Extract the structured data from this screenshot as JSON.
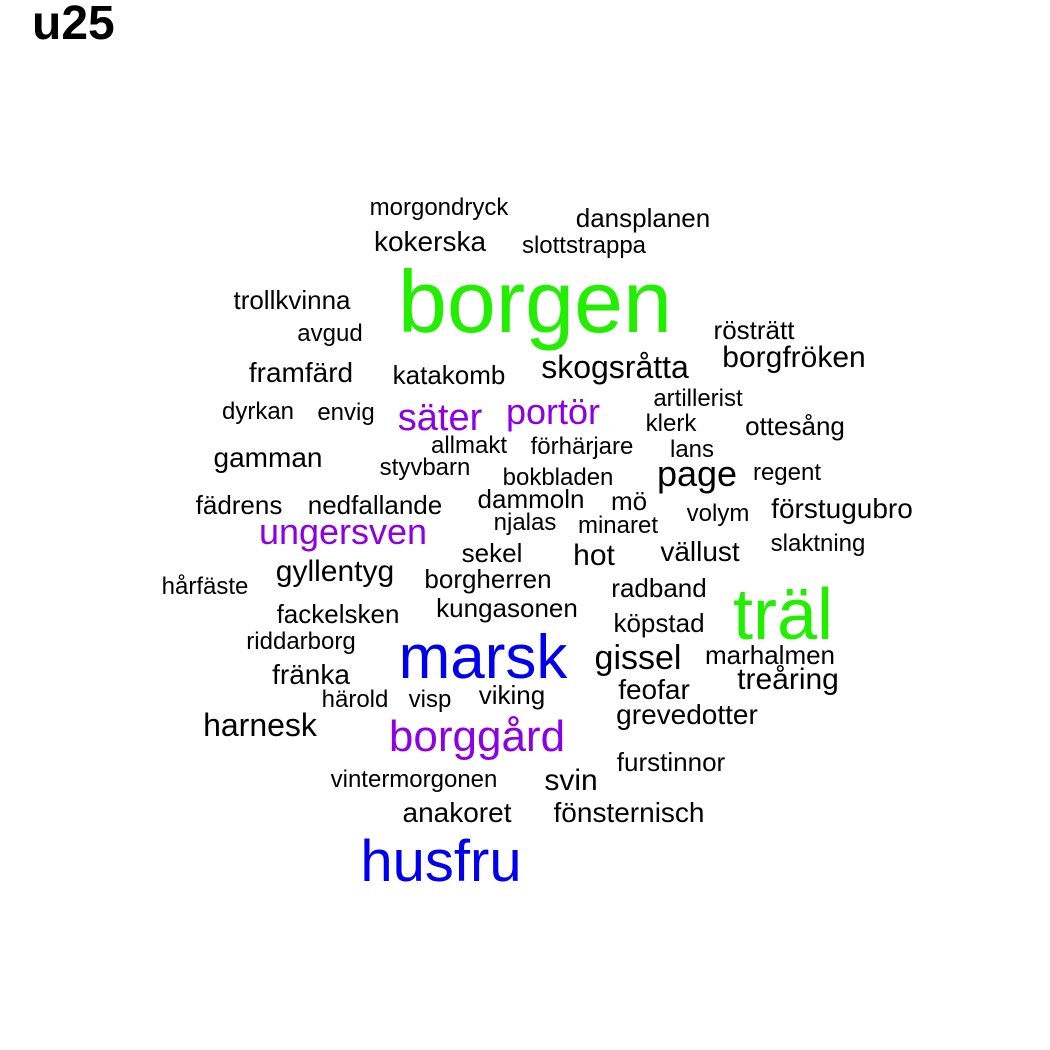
{
  "title": "u25",
  "colors": {
    "green": "#22ee00",
    "blue": "#0000ee",
    "purple": "#8b00e6",
    "black": "#000000"
  },
  "words": [
    {
      "text": "borgen",
      "color": "green"
    },
    {
      "text": "träl",
      "color": "green"
    },
    {
      "text": "marsk",
      "color": "blue"
    },
    {
      "text": "husfru",
      "color": "blue"
    },
    {
      "text": "borggård",
      "color": "purple"
    },
    {
      "text": "säter",
      "color": "purple"
    },
    {
      "text": "portör",
      "color": "purple"
    },
    {
      "text": "ungersven",
      "color": "purple"
    },
    {
      "text": "morgondryck",
      "color": "black"
    },
    {
      "text": "dansplanen",
      "color": "black"
    },
    {
      "text": "kokerska",
      "color": "black"
    },
    {
      "text": "slottstrappa",
      "color": "black"
    },
    {
      "text": "trollkvinna",
      "color": "black"
    },
    {
      "text": "avgud",
      "color": "black"
    },
    {
      "text": "rösträtt",
      "color": "black"
    },
    {
      "text": "borgfröken",
      "color": "black"
    },
    {
      "text": "framfärd",
      "color": "black"
    },
    {
      "text": "katakomb",
      "color": "black"
    },
    {
      "text": "skogsråtta",
      "color": "black"
    },
    {
      "text": "artillerist",
      "color": "black"
    },
    {
      "text": "dyrkan",
      "color": "black"
    },
    {
      "text": "envig",
      "color": "black"
    },
    {
      "text": "klerk",
      "color": "black"
    },
    {
      "text": "ottesång",
      "color": "black"
    },
    {
      "text": "allmakt",
      "color": "black"
    },
    {
      "text": "förhärjare",
      "color": "black"
    },
    {
      "text": "lans",
      "color": "black"
    },
    {
      "text": "gamman",
      "color": "black"
    },
    {
      "text": "styvbarn",
      "color": "black"
    },
    {
      "text": "bokbladen",
      "color": "black"
    },
    {
      "text": "page",
      "color": "black"
    },
    {
      "text": "regent",
      "color": "black"
    },
    {
      "text": "fädrens",
      "color": "black"
    },
    {
      "text": "nedfallande",
      "color": "black"
    },
    {
      "text": "dammoln",
      "color": "black"
    },
    {
      "text": "mö",
      "color": "black"
    },
    {
      "text": "volym",
      "color": "black"
    },
    {
      "text": "förstugubro",
      "color": "black"
    },
    {
      "text": "njalas",
      "color": "black"
    },
    {
      "text": "minaret",
      "color": "black"
    },
    {
      "text": "sekel",
      "color": "black"
    },
    {
      "text": "hot",
      "color": "black"
    },
    {
      "text": "vällust",
      "color": "black"
    },
    {
      "text": "slaktning",
      "color": "black"
    },
    {
      "text": "gyllentyg",
      "color": "black"
    },
    {
      "text": "hårfäste",
      "color": "black"
    },
    {
      "text": "borgherren",
      "color": "black"
    },
    {
      "text": "radband",
      "color": "black"
    },
    {
      "text": "fackelsken",
      "color": "black"
    },
    {
      "text": "kungasonen",
      "color": "black"
    },
    {
      "text": "köpstad",
      "color": "black"
    },
    {
      "text": "riddarborg",
      "color": "black"
    },
    {
      "text": "gissel",
      "color": "black"
    },
    {
      "text": "marhalmen",
      "color": "black"
    },
    {
      "text": "fränka",
      "color": "black"
    },
    {
      "text": "treåring",
      "color": "black"
    },
    {
      "text": "härold",
      "color": "black"
    },
    {
      "text": "visp",
      "color": "black"
    },
    {
      "text": "viking",
      "color": "black"
    },
    {
      "text": "feofar",
      "color": "black"
    },
    {
      "text": "harnesk",
      "color": "black"
    },
    {
      "text": "grevedotter",
      "color": "black"
    },
    {
      "text": "furstinnor",
      "color": "black"
    },
    {
      "text": "vintermorgonen",
      "color": "black"
    },
    {
      "text": "svin",
      "color": "black"
    },
    {
      "text": "anakoret",
      "color": "black"
    },
    {
      "text": "fönsternisch",
      "color": "black"
    }
  ]
}
